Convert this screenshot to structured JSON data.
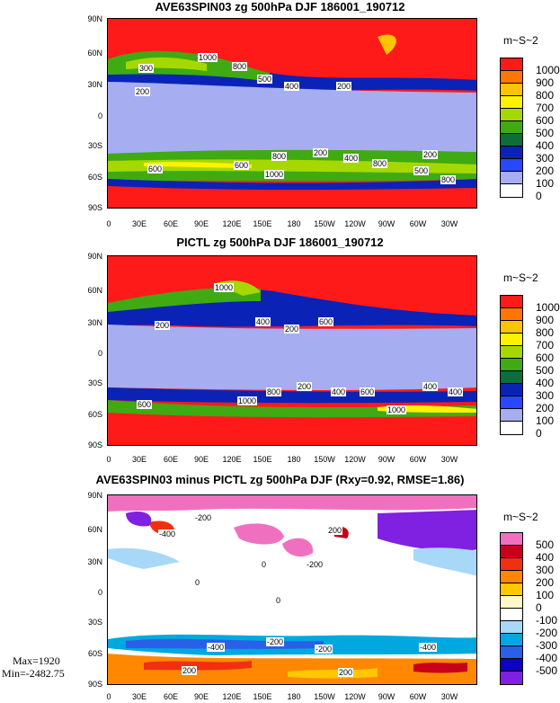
{
  "panels": [
    {
      "title": "AVE63SPIN03 zg 500hPa DJF 186001_190712",
      "units": "m~S~2",
      "lat_labels": [
        "90N",
        "60N",
        "30N",
        "0",
        "30S",
        "60S",
        "90S"
      ],
      "lon_labels": [
        "0",
        "30E",
        "60E",
        "90E",
        "120E",
        "150E",
        "180",
        "150W",
        "120W",
        "90W",
        "60W",
        "30W"
      ],
      "colorbar": [
        {
          "label": "1000",
          "color": "#ff1a1a"
        },
        {
          "label": "900",
          "color": "#ff7700"
        },
        {
          "label": "800",
          "color": "#ffc400"
        },
        {
          "label": "700",
          "color": "#fff200"
        },
        {
          "label": "600",
          "color": "#a6d800"
        },
        {
          "label": "500",
          "color": "#3faa12"
        },
        {
          "label": "400",
          "color": "#0d6e3a"
        },
        {
          "label": "300",
          "color": "#0a23b6"
        },
        {
          "label": "200",
          "color": "#2848ff"
        },
        {
          "label": "100",
          "color": "#a6adf0"
        },
        {
          "label": "0",
          "color": "#ffffff"
        }
      ],
      "contour_labels": [
        "1000",
        "800",
        "500",
        "400",
        "200",
        "200",
        "300",
        "200",
        "400",
        "600",
        "1000",
        "800",
        "500",
        "800",
        "600",
        "200",
        "800"
      ]
    },
    {
      "title": "PICTL zg 500hPa DJF 186001_190712",
      "units": "m~S~2",
      "lat_labels": [
        "90N",
        "60N",
        "30N",
        "0",
        "30S",
        "60S",
        "90S"
      ],
      "lon_labels": [
        "0",
        "30E",
        "60E",
        "90E",
        "120E",
        "150E",
        "180",
        "150W",
        "120W",
        "90W",
        "60W",
        "30W"
      ],
      "colorbar": [
        {
          "label": "1000",
          "color": "#ff1a1a"
        },
        {
          "label": "900",
          "color": "#ff7700"
        },
        {
          "label": "800",
          "color": "#ffc400"
        },
        {
          "label": "700",
          "color": "#fff200"
        },
        {
          "label": "600",
          "color": "#a6d800"
        },
        {
          "label": "500",
          "color": "#3faa12"
        },
        {
          "label": "400",
          "color": "#0d6e3a"
        },
        {
          "label": "300",
          "color": "#0a23b6"
        },
        {
          "label": "200",
          "color": "#2848ff"
        },
        {
          "label": "100",
          "color": "#a6adf0"
        },
        {
          "label": "0",
          "color": "#ffffff"
        }
      ],
      "contour_labels": [
        "1000",
        "400",
        "200",
        "600",
        "200",
        "800",
        "200",
        "400",
        "600",
        "400",
        "600",
        "1000",
        "1000",
        "400"
      ]
    },
    {
      "title": "AVE63SPIN03 minus PICTL zg 500hPa DJF (Rxy=0.92, RMSE=1.86)",
      "units": "m~S~2",
      "lat_labels": [
        "90N",
        "60N",
        "30N",
        "0",
        "30S",
        "60S",
        "90S"
      ],
      "lon_labels": [
        "0",
        "30E",
        "60E",
        "90E",
        "120E",
        "150E",
        "180",
        "150W",
        "120W",
        "90W",
        "60W",
        "30W"
      ],
      "colorbar": [
        {
          "label": "500",
          "color": "#f070c0"
        },
        {
          "label": "400",
          "color": "#c8001a"
        },
        {
          "label": "300",
          "color": "#f03010"
        },
        {
          "label": "200",
          "color": "#ff8800"
        },
        {
          "label": "100",
          "color": "#ffc800"
        },
        {
          "label": "0",
          "color": "#fff8c8"
        },
        {
          "label": "-100",
          "color": "#ffffff"
        },
        {
          "label": "-200",
          "color": "#a8d8f8"
        },
        {
          "label": "-300",
          "color": "#00a8e0"
        },
        {
          "label": "-400",
          "color": "#2860e8"
        },
        {
          "label": "-500",
          "color": "#1000c0"
        },
        {
          "label": "",
          "color": "#8020e0"
        }
      ],
      "contour_labels": [
        "-200",
        "-400",
        "200",
        "0",
        "-200",
        "0",
        "0",
        "-400",
        "-200",
        "-200",
        "-400",
        "200",
        "200"
      ],
      "max_text": "Max=1920",
      "min_text": "Min=-2482.75"
    }
  ]
}
